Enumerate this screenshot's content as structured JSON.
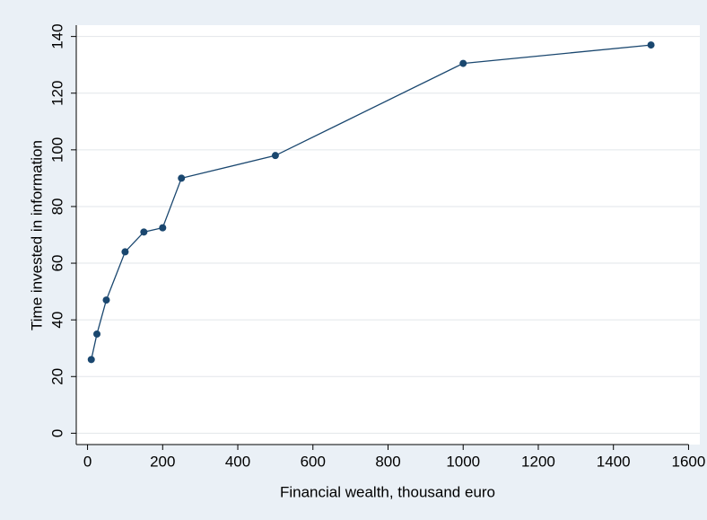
{
  "chart_data": {
    "type": "line",
    "x_label": "Financial wealth, thousand euro",
    "y_label": "Time invested in information",
    "x": [
      10,
      25,
      50,
      100,
      150,
      200,
      250,
      500,
      1000,
      1500
    ],
    "series": [
      {
        "color": "#1a476f",
        "values": [
          26,
          35,
          47,
          64,
          71,
          72.5,
          90,
          98,
          130.5,
          137
        ]
      }
    ],
    "xlim": [
      -30,
      1630
    ],
    "xticks": [
      0,
      200,
      400,
      600,
      800,
      1000,
      1200,
      1400,
      1600
    ],
    "ylim": [
      -4,
      144
    ],
    "yticks": [
      0,
      20,
      40,
      60,
      80,
      100,
      120,
      140
    ],
    "grid": true
  }
}
